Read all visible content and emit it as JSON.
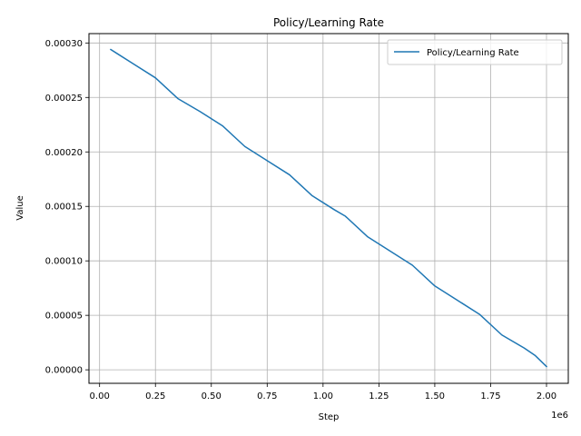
{
  "chart_data": {
    "type": "line",
    "title": "Policy/Learning Rate",
    "xlabel": "Step",
    "ylabel": "Value",
    "x_offset_label": "1e6",
    "xlim": [
      -0.0475,
      2.0975
    ],
    "ylim": [
      -1.24e-05,
      0.0003086
    ],
    "xticks": [
      0.0,
      0.25,
      0.5,
      0.75,
      1.0,
      1.25,
      1.5,
      1.75,
      2.0
    ],
    "xtick_labels": [
      "0.00",
      "0.25",
      "0.50",
      "0.75",
      "1.00",
      "1.25",
      "1.50",
      "1.75",
      "2.00"
    ],
    "yticks": [
      0.0,
      5e-05,
      0.0001,
      0.00015,
      0.0002,
      0.00025,
      0.0003
    ],
    "ytick_labels": [
      "0.00000",
      "0.00005",
      "0.00010",
      "0.00015",
      "0.00020",
      "0.00025",
      "0.00030"
    ],
    "grid": true,
    "legend_position": "top-right",
    "color": "#1f77b4",
    "series": [
      {
        "name": "Policy/Learning Rate",
        "x": [
          0.05,
          0.15,
          0.25,
          0.35,
          0.45,
          0.55,
          0.65,
          0.75,
          0.85,
          0.95,
          1.05,
          1.1,
          1.2,
          1.3,
          1.4,
          1.5,
          1.6,
          1.7,
          1.8,
          1.9,
          1.95,
          2.0
        ],
        "y": [
          0.000294,
          0.000281,
          0.000268,
          0.000249,
          0.000237,
          0.000224,
          0.000205,
          0.000192,
          0.000179,
          0.00016,
          0.000147,
          0.000141,
          0.000122,
          0.000109,
          9.6e-05,
          7.7e-05,
          6.4e-05,
          5.1e-05,
          3.2e-05,
          2e-05,
          1.3e-05,
          3e-06
        ]
      }
    ]
  }
}
